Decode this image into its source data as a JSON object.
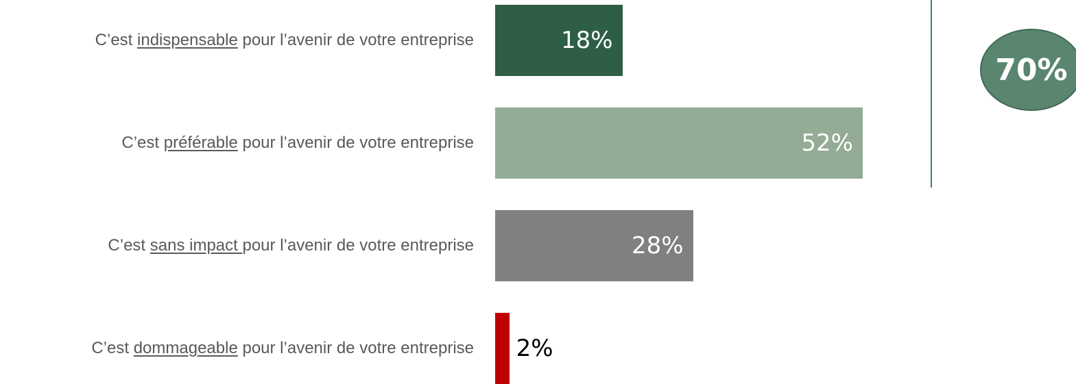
{
  "chart_data": {
    "type": "bar",
    "orientation": "horizontal",
    "xlim": [
      0,
      52
    ],
    "rows": [
      {
        "prefix": "C’est ",
        "keyword": "indispensable",
        "suffix": " pour l’avenir de votre entreprise",
        "value": 18,
        "value_label": "18%",
        "color": "#2e5e46",
        "value_color": "#ffffff"
      },
      {
        "prefix": "C’est ",
        "keyword": "préférable",
        "suffix": " pour l’avenir de votre entreprise",
        "value": 52,
        "value_label": "52%",
        "color": "#94ab95",
        "value_color": "#ffffff"
      },
      {
        "prefix": "C’est ",
        "keyword": "sans impact ",
        "suffix": "pour l’avenir de votre entreprise",
        "value": 28,
        "value_label": "28%",
        "color": "#808080",
        "value_color": "#ffffff"
      },
      {
        "prefix": "C’est ",
        "keyword": "dommageable",
        "suffix": " pour l’avenir de votre entreprise",
        "value": 2,
        "value_label": "2%",
        "color": "#c00000",
        "value_color": "#000000"
      }
    ],
    "total_badge": "70%",
    "badge_color": "#5a8670"
  }
}
